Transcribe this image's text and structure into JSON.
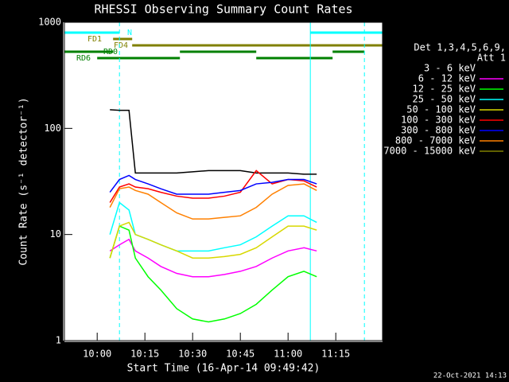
{
  "chart_data": {
    "type": "line",
    "title": "RHESSI Observing Summary Count Rates",
    "xlabel": "Start Time (16-Apr-14 09:49:42)",
    "ylabel": "Count Rate (s⁻¹ detector⁻¹)",
    "footer": "22-Oct-2021 14:13",
    "legend_title": [
      "Det 1,3,4,5,6,9,",
      "Att 1"
    ],
    "xlim": [
      "09:49:42",
      "11:29:42"
    ],
    "xticks": [
      "10:00",
      "10:15",
      "10:30",
      "10:45",
      "11:00",
      "11:15"
    ],
    "ylim": [
      1,
      1000
    ],
    "yticks": [
      1,
      10,
      100,
      1000
    ],
    "log_y": true,
    "x": [
      "10:04",
      "10:07",
      "10:10",
      "10:12",
      "10:16",
      "10:20",
      "10:25",
      "10:30",
      "10:35",
      "10:40",
      "10:45",
      "10:50",
      "10:55",
      "11:00",
      "11:05",
      "11:09"
    ],
    "series": [
      {
        "name": "3 - 6 keV",
        "color": "#000000",
        "values": [
          150,
          148,
          148,
          38,
          38,
          38,
          38,
          39,
          40,
          40,
          40,
          38,
          38,
          38,
          37,
          37
        ]
      },
      {
        "name": "6 - 12 keV",
        "color": "#ff00ff",
        "values": [
          7,
          8,
          9,
          7,
          6,
          5,
          4.3,
          4,
          4,
          4.2,
          4.5,
          5,
          6,
          7,
          7.5,
          7
        ]
      },
      {
        "name": "12 - 25 keV",
        "color": "#00ff00",
        "values": [
          6,
          12,
          11,
          6,
          4,
          3,
          2,
          1.6,
          1.5,
          1.6,
          1.8,
          2.2,
          3,
          4,
          4.5,
          4
        ]
      },
      {
        "name": "25 - 50 keV",
        "color": "#00ffff",
        "values": [
          10,
          20,
          17,
          10,
          9,
          8,
          7,
          7,
          7,
          7.5,
          8,
          9.5,
          12,
          15,
          15,
          13
        ]
      },
      {
        "name": "50 - 100 keV",
        "color": "#d8d800",
        "values": [
          6,
          12,
          13,
          10,
          9,
          8,
          7,
          6,
          6,
          6.2,
          6.5,
          7.5,
          9.5,
          12,
          12,
          11
        ]
      },
      {
        "name": "100 - 300 keV",
        "color": "#ff0000",
        "values": [
          20,
          28,
          30,
          28,
          27,
          25,
          23,
          22,
          22,
          23,
          25,
          40,
          30,
          33,
          32,
          28
        ]
      },
      {
        "name": "300 - 800 keV",
        "color": "#0000ff",
        "values": [
          25,
          33,
          36,
          33,
          30,
          27,
          24,
          24,
          24,
          25,
          26,
          30,
          31,
          33,
          33,
          30
        ]
      },
      {
        "name": "800 - 7000 keV",
        "color": "#ff8000",
        "values": [
          18,
          27,
          28,
          26,
          24,
          20,
          16,
          14,
          14,
          14.5,
          15,
          18,
          24,
          29,
          30,
          26
        ]
      },
      {
        "name": "7000 - 15000 keV",
        "color": "#808000",
        "values": [
          null,
          null,
          null,
          null,
          null,
          null,
          null,
          null,
          null,
          null,
          null,
          null,
          null,
          null,
          null,
          null
        ]
      }
    ],
    "flags": [
      {
        "label": "N",
        "color": "#00ffff",
        "segments": [
          [
            "09:49:42",
            "10:07"
          ],
          [
            "11:07",
            "11:29:42"
          ]
        ]
      },
      {
        "label": "FD1",
        "color": "#808000",
        "segments": [
          [
            "10:05",
            "10:11"
          ]
        ]
      },
      {
        "label": "FD4",
        "color": "#808000",
        "segments": [
          [
            "10:11",
            "11:29:42"
          ]
        ]
      },
      {
        "label": "RD0",
        "color": "#008000",
        "segments": [
          [
            "09:49:42",
            "10:05"
          ],
          [
            "10:26",
            "10:50"
          ],
          [
            "11:14",
            "11:24"
          ]
        ]
      },
      {
        "label": "RD6",
        "color": "#008000",
        "segments": [
          [
            "10:00",
            "10:26"
          ],
          [
            "10:50",
            "11:14"
          ]
        ]
      }
    ],
    "vlines": [
      {
        "x": "09:49:42",
        "style": "solid",
        "color": "#00ffff"
      },
      {
        "x": "10:07",
        "style": "dashed",
        "color": "#00ffff"
      },
      {
        "x": "11:07",
        "style": "solid",
        "color": "#00ffff"
      },
      {
        "x": "11:24",
        "style": "dashed",
        "color": "#00ffff"
      }
    ]
  }
}
